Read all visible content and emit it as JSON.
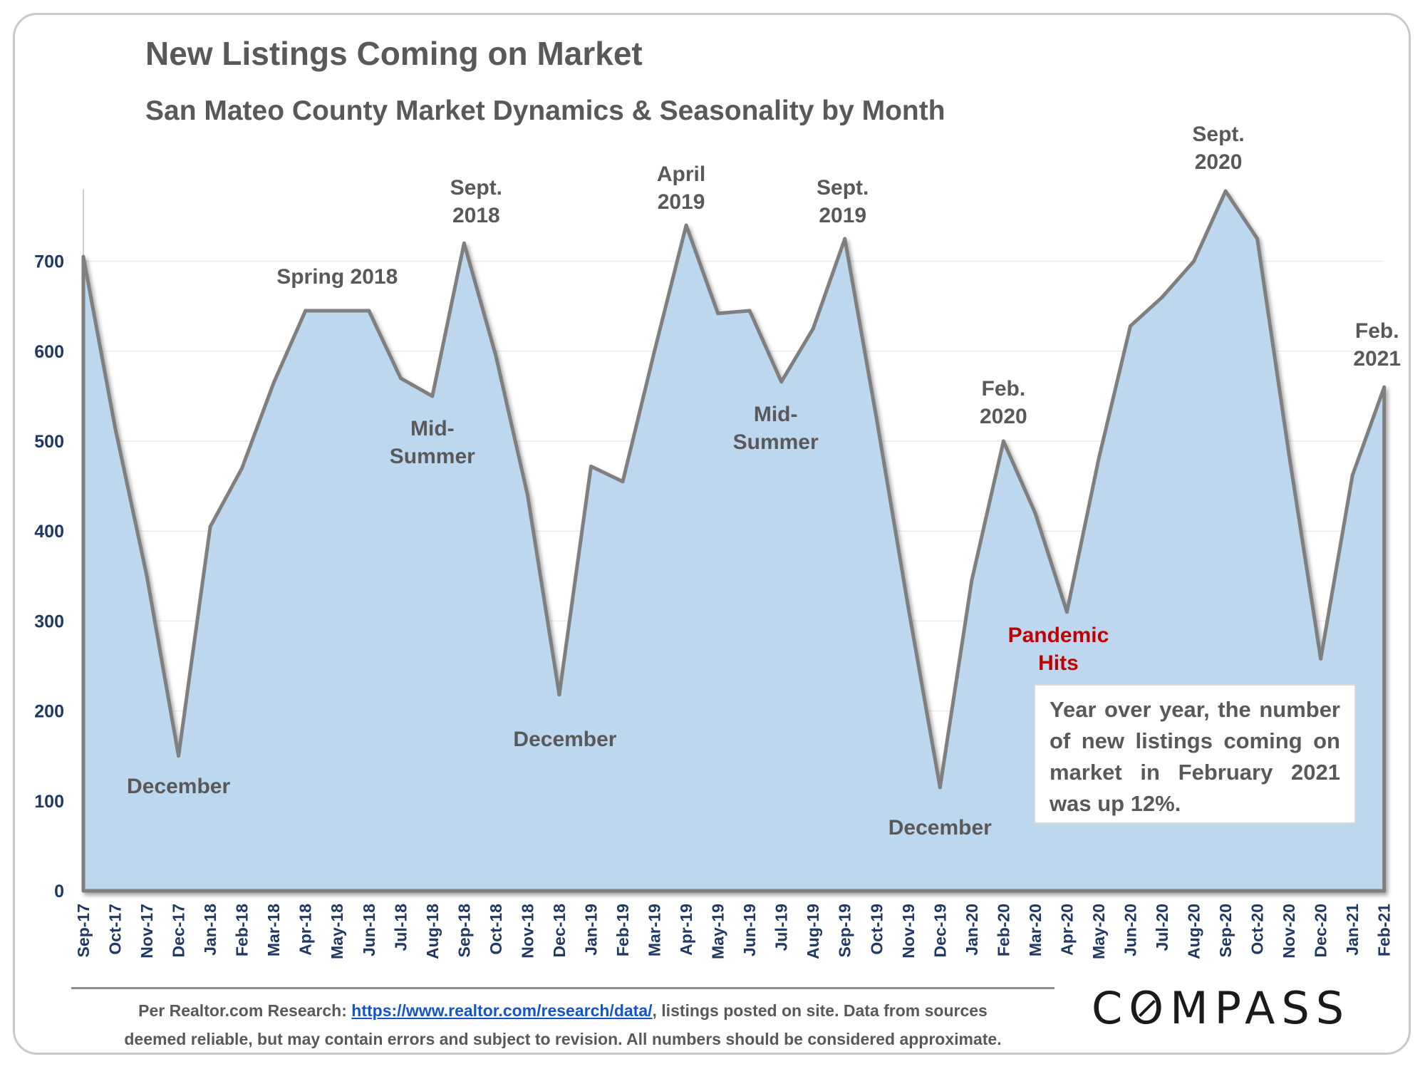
{
  "title": "New Listings Coming on Market",
  "subtitle": "San Mateo County Market Dynamics & Seasonality by Month",
  "footer": {
    "prefix": "Per Realtor.com Research: ",
    "link": "https://www.realtor.com/research/data/",
    "suffix_line1": ", listings posted on site. Data from sources",
    "line2": "deemed reliable, but may contain errors and subject to revision. All numbers should be considered approximate."
  },
  "logo": {
    "before": "C",
    "o": "O",
    "after": "MPASS"
  },
  "note_box": "Year over year, the number of new listings coming on market in February 2021 was up 12%.",
  "colors": {
    "area_fill": "#bdd7ee",
    "line": "#7f7f7f",
    "axis_text": "#1f3864",
    "annotation": "#595959",
    "pandemic": "#c00000"
  },
  "chart_data": {
    "type": "area",
    "title": "New Listings Coming on Market",
    "subtitle": "San Mateo County Market Dynamics & Seasonality by Month",
    "xlabel": "",
    "ylabel": "",
    "ylim": [
      0,
      780
    ],
    "yticks": [
      0,
      100,
      200,
      300,
      400,
      500,
      600,
      700
    ],
    "grid": true,
    "categories": [
      "Sep-17",
      "Oct-17",
      "Nov-17",
      "Dec-17",
      "Jan-18",
      "Feb-18",
      "Mar-18",
      "Apr-18",
      "May-18",
      "Jun-18",
      "Jul-18",
      "Aug-18",
      "Sep-18",
      "Oct-18",
      "Nov-18",
      "Dec-18",
      "Jan-19",
      "Feb-19",
      "Mar-19",
      "Apr-19",
      "May-19",
      "Jun-19",
      "Jul-19",
      "Aug-19",
      "Sep-19",
      "Oct-19",
      "Nov-19",
      "Dec-19",
      "Jan-20",
      "Feb-20",
      "Mar-20",
      "Apr-20",
      "May-20",
      "Jun-20",
      "Jul-20",
      "Aug-20",
      "Sep-20",
      "Oct-20",
      "Nov-20",
      "Dec-20",
      "Jan-21",
      "Feb-21"
    ],
    "values": [
      705,
      515,
      350,
      150,
      405,
      470,
      565,
      645,
      645,
      645,
      570,
      550,
      720,
      595,
      440,
      218,
      472,
      455,
      600,
      740,
      642,
      645,
      566,
      625,
      725,
      525,
      315,
      115,
      345,
      500,
      420,
      310,
      480,
      628,
      660,
      700,
      778,
      725,
      485,
      258,
      462,
      560
    ],
    "annotations": [
      {
        "text": "December",
        "category": "Dec-17",
        "color": "annotation"
      },
      {
        "text": "Spring 2018",
        "category": "May-18",
        "color": "annotation"
      },
      {
        "text": "Mid-\nSummer",
        "category": "Aug-18",
        "color": "annotation"
      },
      {
        "text": "Sept.\n2018",
        "category": "Sep-18",
        "color": "annotation"
      },
      {
        "text": "December",
        "category": "Dec-18",
        "color": "annotation"
      },
      {
        "text": "April\n2019",
        "category": "Apr-19",
        "color": "annotation"
      },
      {
        "text": "Mid-\nSummer",
        "category": "Jul-19",
        "color": "annotation"
      },
      {
        "text": "Sept.\n2019",
        "category": "Sep-19",
        "color": "annotation"
      },
      {
        "text": "December",
        "category": "Dec-19",
        "color": "annotation"
      },
      {
        "text": "Feb.\n2020",
        "category": "Feb-20",
        "color": "annotation"
      },
      {
        "text": "Pandemic\nHits",
        "category": "Apr-20",
        "color": "pandemic"
      },
      {
        "text": "Sept.\n2020",
        "category": "Sep-20",
        "color": "annotation"
      },
      {
        "text": "Feb.\n2021",
        "category": "Feb-21",
        "color": "annotation"
      }
    ]
  }
}
